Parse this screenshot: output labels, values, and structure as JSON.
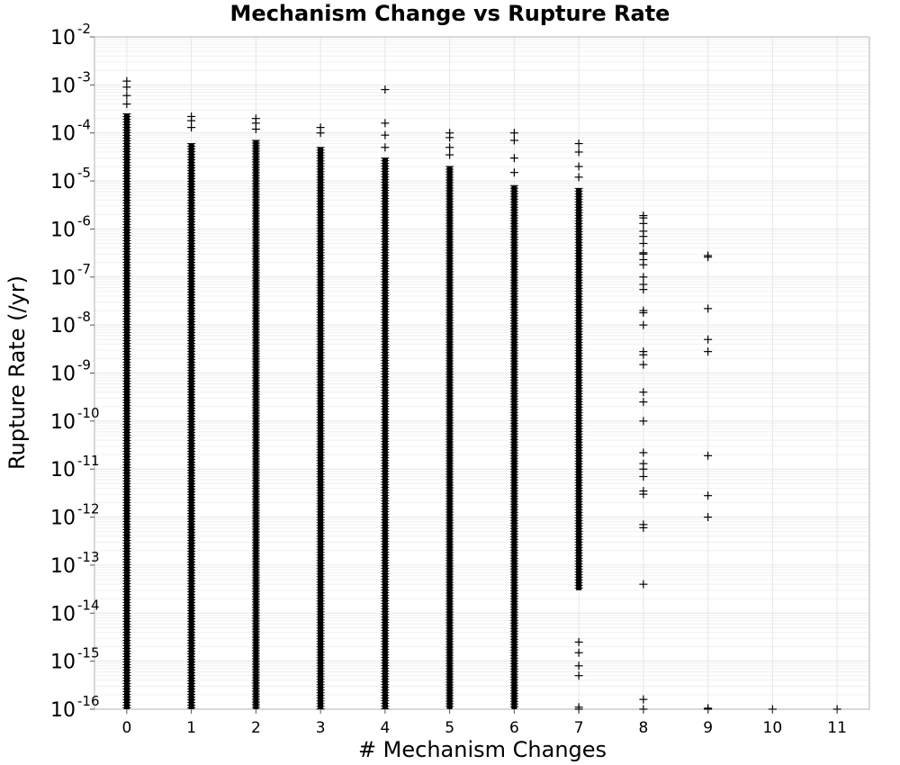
{
  "chart_data": {
    "type": "scatter",
    "title": "Mechanism Change vs Rupture Rate",
    "xlabel": "# Mechanism Changes",
    "ylabel": "Rupture Rate (/yr)",
    "xlim": [
      -0.5,
      11.5
    ],
    "ylim": [
      1e-16,
      0.01
    ],
    "yscale": "log",
    "grid": true,
    "marker": "+",
    "marker_color": "#000000",
    "x_ticks": [
      "0",
      "1",
      "2",
      "3",
      "4",
      "5",
      "6",
      "7",
      "8",
      "9",
      "10",
      "11"
    ],
    "y_ticks": [
      {
        "base": "10",
        "exp": "-16"
      },
      {
        "base": "10",
        "exp": "-15"
      },
      {
        "base": "10",
        "exp": "-14"
      },
      {
        "base": "10",
        "exp": "-13"
      },
      {
        "base": "10",
        "exp": "-12"
      },
      {
        "base": "10",
        "exp": "-11"
      },
      {
        "base": "10",
        "exp": "-10"
      },
      {
        "base": "10",
        "exp": "-9"
      },
      {
        "base": "10",
        "exp": "-8"
      },
      {
        "base": "10",
        "exp": "-7"
      },
      {
        "base": "10",
        "exp": "-6"
      },
      {
        "base": "10",
        "exp": "-5"
      },
      {
        "base": "10",
        "exp": "-4"
      },
      {
        "base": "10",
        "exp": "-3"
      },
      {
        "base": "10",
        "exp": "-2"
      }
    ],
    "dense_columns": [
      {
        "x": 0,
        "y_min": 1e-16,
        "y_max": 0.00025
      },
      {
        "x": 1,
        "y_min": 1e-16,
        "y_max": 6e-05
      },
      {
        "x": 2,
        "y_min": 1e-16,
        "y_max": 7e-05
      },
      {
        "x": 3,
        "y_min": 1e-16,
        "y_max": 5e-05
      },
      {
        "x": 4,
        "y_min": 1e-16,
        "y_max": 3e-05
      },
      {
        "x": 5,
        "y_min": 1e-16,
        "y_max": 2e-05
      },
      {
        "x": 6,
        "y_min": 1e-16,
        "y_max": 8e-06
      },
      {
        "x": 7,
        "y_min": 3e-14,
        "y_max": 7e-06
      }
    ],
    "points": [
      {
        "x": 0,
        "y": 0.0012
      },
      {
        "x": 0,
        "y": 0.0009
      },
      {
        "x": 0,
        "y": 0.0006
      },
      {
        "x": 0,
        "y": 0.0004
      },
      {
        "x": 1,
        "y": 0.00022
      },
      {
        "x": 1,
        "y": 0.00018
      },
      {
        "x": 1,
        "y": 0.00013
      },
      {
        "x": 2,
        "y": 0.0002
      },
      {
        "x": 2,
        "y": 0.00016
      },
      {
        "x": 2,
        "y": 0.00012
      },
      {
        "x": 3,
        "y": 0.00013
      },
      {
        "x": 3,
        "y": 0.0001
      },
      {
        "x": 4,
        "y": 0.0008
      },
      {
        "x": 4,
        "y": 0.00016
      },
      {
        "x": 4,
        "y": 9e-05
      },
      {
        "x": 4,
        "y": 5e-05
      },
      {
        "x": 5,
        "y": 0.0001
      },
      {
        "x": 5,
        "y": 8e-05
      },
      {
        "x": 5,
        "y": 5e-05
      },
      {
        "x": 5,
        "y": 3.5e-05
      },
      {
        "x": 6,
        "y": 0.0001
      },
      {
        "x": 6,
        "y": 7e-05
      },
      {
        "x": 6,
        "y": 3e-05
      },
      {
        "x": 6,
        "y": 1.5e-05
      },
      {
        "x": 7,
        "y": 6e-05
      },
      {
        "x": 7,
        "y": 4e-05
      },
      {
        "x": 7,
        "y": 2e-05
      },
      {
        "x": 7,
        "y": 1.2e-05
      },
      {
        "x": 7,
        "y": 2.5e-15
      },
      {
        "x": 7,
        "y": 1.5e-15
      },
      {
        "x": 7,
        "y": 8e-16
      },
      {
        "x": 7,
        "y": 5e-16
      },
      {
        "x": 7,
        "y": 1.1e-16
      },
      {
        "x": 7,
        "y": 1e-16
      },
      {
        "x": 8,
        "y": 1.9e-06
      },
      {
        "x": 8,
        "y": 1.7e-06
      },
      {
        "x": 8,
        "y": 1.3e-06
      },
      {
        "x": 8,
        "y": 9e-07
      },
      {
        "x": 8,
        "y": 7e-07
      },
      {
        "x": 8,
        "y": 5e-07
      },
      {
        "x": 8,
        "y": 3.2e-07
      },
      {
        "x": 8,
        "y": 3e-07
      },
      {
        "x": 8,
        "y": 2.3e-07
      },
      {
        "x": 8,
        "y": 1.8e-07
      },
      {
        "x": 8,
        "y": 1e-07
      },
      {
        "x": 8,
        "y": 7e-08
      },
      {
        "x": 8,
        "y": 5.5e-08
      },
      {
        "x": 8,
        "y": 2e-08
      },
      {
        "x": 8,
        "y": 1.8e-08
      },
      {
        "x": 8,
        "y": 1e-08
      },
      {
        "x": 8,
        "y": 2.8e-09
      },
      {
        "x": 8,
        "y": 2.4e-09
      },
      {
        "x": 8,
        "y": 1.5e-09
      },
      {
        "x": 8,
        "y": 4e-10
      },
      {
        "x": 8,
        "y": 2.5e-10
      },
      {
        "x": 8,
        "y": 1e-10
      },
      {
        "x": 8,
        "y": 2.2e-11
      },
      {
        "x": 8,
        "y": 1.3e-11
      },
      {
        "x": 8,
        "y": 1e-11
      },
      {
        "x": 8,
        "y": 7e-12
      },
      {
        "x": 8,
        "y": 3.5e-12
      },
      {
        "x": 8,
        "y": 3e-12
      },
      {
        "x": 8,
        "y": 7e-13
      },
      {
        "x": 8,
        "y": 6e-13
      },
      {
        "x": 8,
        "y": 4e-14
      },
      {
        "x": 8,
        "y": 1.6e-16
      },
      {
        "x": 8,
        "y": 1e-16
      },
      {
        "x": 9,
        "y": 2.8e-07
      },
      {
        "x": 9,
        "y": 2.6e-07
      },
      {
        "x": 9,
        "y": 2.2e-08
      },
      {
        "x": 9,
        "y": 5e-09
      },
      {
        "x": 9,
        "y": 2.8e-09
      },
      {
        "x": 9,
        "y": 1.9e-11
      },
      {
        "x": 9,
        "y": 2.8e-12
      },
      {
        "x": 9,
        "y": 1e-12
      },
      {
        "x": 9,
        "y": 1.05e-16
      },
      {
        "x": 9,
        "y": 1e-16
      },
      {
        "x": 10,
        "y": 1e-16
      },
      {
        "x": 11,
        "y": 1e-16
      }
    ]
  }
}
